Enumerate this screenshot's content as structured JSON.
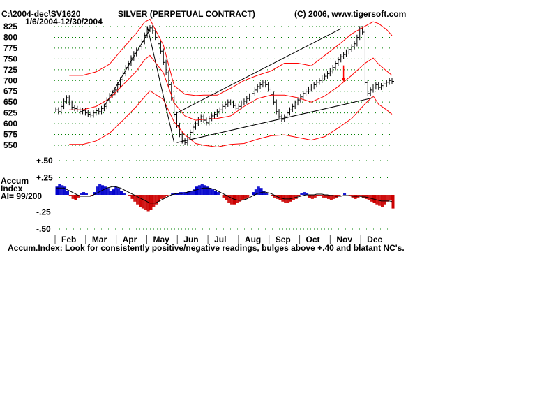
{
  "header": {
    "path": "C:\\2004-dec\\SV1620",
    "title": "SILVER (PERPETUAL CONTRACT)",
    "copyright": "(C) 2006, www.tigersoft.com",
    "date_range": "1/6/2004-12/30/2004"
  },
  "footer": {
    "note": "Accum.Index: Look for consistently positive/negative readings, bulges above +.40 and blatant NC's."
  },
  "colors": {
    "price_bars": "#000000",
    "bands": "#ff0000",
    "trendlines": "#000000",
    "accum_positive": "#0000cc",
    "accum_negative": "#cc0000",
    "accum_ma": "#000000",
    "grid": "#008000"
  },
  "chart_data": [
    {
      "type": "line",
      "name": "price",
      "ylim": [
        550,
        835
      ],
      "yticks": [
        550,
        575,
        600,
        625,
        650,
        675,
        700,
        725,
        750,
        775,
        800,
        825
      ],
      "ytick_labels": [
        "550",
        "575",
        "600",
        "625",
        "650",
        "675",
        "700",
        "725",
        "750",
        "775",
        "800",
        "825"
      ],
      "grid": true,
      "xlabels": [
        "Feb",
        "Mar",
        "Apr",
        "May",
        "Jun",
        "Jul",
        "Aug",
        "Sep",
        "Oct",
        "Nov",
        "Dec"
      ],
      "series": [
        {
          "name": "",
          "role": "close",
          "x": [
            0,
            2,
            4,
            6,
            8,
            10,
            12,
            14,
            16,
            18,
            20,
            22,
            24,
            26,
            28,
            30,
            32,
            34,
            36,
            38,
            40,
            42,
            44,
            46,
            48,
            50,
            52,
            54,
            56,
            58,
            60,
            62,
            64,
            66,
            68,
            70,
            72,
            74,
            76,
            78,
            80,
            82,
            84,
            86,
            88,
            90,
            92,
            94,
            96,
            98,
            100,
            102,
            104,
            106,
            108,
            110,
            112,
            114,
            116,
            118,
            120,
            122,
            124,
            126,
            128,
            130,
            132,
            134,
            136,
            138,
            140,
            142,
            144,
            146,
            148,
            150,
            152,
            154,
            156,
            158,
            160,
            162,
            164,
            166,
            168,
            170,
            172,
            174,
            176,
            178,
            180,
            182,
            184,
            186,
            188,
            190,
            192,
            194,
            196,
            198,
            200,
            202,
            204,
            206,
            208,
            210,
            212,
            214,
            216,
            218,
            220,
            222,
            224,
            226,
            228,
            230,
            232,
            234,
            236,
            238,
            240,
            242,
            244,
            246,
            248,
            250
          ],
          "values": [
            632,
            628,
            640,
            652,
            660,
            648,
            638,
            635,
            632,
            628,
            630,
            625,
            622,
            620,
            625,
            630,
            628,
            635,
            640,
            655,
            665,
            672,
            678,
            690,
            702,
            716,
            730,
            740,
            752,
            762,
            770,
            778,
            790,
            805,
            818,
            822,
            815,
            800,
            785,
            768,
            742,
            718,
            690,
            660,
            622,
            596,
            575,
            560,
            556,
            568,
            580,
            592,
            600,
            610,
            616,
            608,
            602,
            612,
            618,
            622,
            628,
            632,
            640,
            645,
            650,
            648,
            642,
            636,
            640,
            648,
            652,
            658,
            664,
            670,
            678,
            686,
            690,
            696,
            690,
            680,
            668,
            650,
            628,
            616,
            610,
            616,
            625,
            632,
            640,
            648,
            655,
            662,
            670,
            675,
            680,
            685,
            690,
            696,
            700,
            706,
            710,
            716,
            722,
            730,
            740,
            748,
            755,
            760,
            766,
            772,
            778,
            785,
            800,
            820,
            812,
            695,
            670,
            678,
            685,
            690,
            684,
            688,
            692,
            696,
            700,
            698
          ]
        },
        {
          "name": "",
          "role": "upper-band",
          "x": [
            10,
            20,
            30,
            40,
            50,
            60,
            66,
            70,
            80,
            88,
            96,
            104,
            110,
            120,
            130,
            140,
            150,
            160,
            170,
            180,
            190,
            200,
            210,
            220,
            230,
            236,
            240,
            246,
            250
          ],
          "values": [
            712,
            712,
            720,
            738,
            775,
            810,
            835,
            842,
            782,
            688,
            668,
            665,
            666,
            666,
            682,
            700,
            712,
            722,
            740,
            740,
            734,
            758,
            782,
            808,
            826,
            836,
            832,
            818,
            804
          ]
        },
        {
          "name": "",
          "role": "lower-band",
          "x": [
            10,
            20,
            30,
            40,
            50,
            60,
            66,
            70,
            80,
            88,
            96,
            104,
            110,
            120,
            130,
            140,
            150,
            160,
            170,
            180,
            190,
            200,
            210,
            220,
            230,
            236,
            240,
            246,
            250
          ],
          "values": [
            552,
            552,
            560,
            578,
            608,
            640,
            662,
            676,
            656,
            604,
            574,
            554,
            550,
            546,
            552,
            554,
            564,
            572,
            574,
            568,
            562,
            570,
            590,
            612,
            646,
            664,
            645,
            632,
            622
          ]
        },
        {
          "name": "",
          "role": "moving-average",
          "x": [
            10,
            20,
            30,
            40,
            50,
            60,
            66,
            70,
            80,
            88,
            96,
            104,
            110,
            120,
            130,
            140,
            150,
            160,
            170,
            180,
            190,
            200,
            210,
            220,
            230,
            236,
            240,
            246,
            250
          ],
          "values": [
            632,
            632,
            640,
            658,
            690,
            722,
            748,
            758,
            718,
            648,
            618,
            608,
            610,
            612,
            618,
            640,
            658,
            666,
            666,
            660,
            650,
            664,
            686,
            712,
            740,
            752,
            738,
            722,
            712
          ]
        },
        {
          "name": "",
          "role": "trendline",
          "x": [
            36,
            70
          ],
          "values": [
            640,
            818
          ]
        },
        {
          "name": "",
          "role": "trendline",
          "x": [
            68,
            88
          ],
          "values": [
            826,
            556
          ]
        },
        {
          "name": "",
          "role": "trendline",
          "x": [
            90,
            236
          ],
          "values": [
            556,
            660
          ]
        },
        {
          "name": "",
          "role": "trendline",
          "x": [
            90,
            212
          ],
          "values": [
            625,
            820
          ]
        }
      ],
      "annotations": [
        {
          "type": "arrow",
          "x": 214,
          "from": 735,
          "to": 698
        }
      ]
    },
    {
      "type": "bar",
      "name": "Accum Index",
      "title": "Accum\nIndex\nAI= 99/200",
      "ylim": [
        -0.5,
        0.5
      ],
      "yticks": [
        0.5,
        0.25,
        -0.25,
        -0.5
      ],
      "ytick_labels": [
        "+.50",
        "+.25",
        "-.25",
        "-.50"
      ],
      "grid": true,
      "x": [
        0,
        2,
        4,
        6,
        8,
        10,
        12,
        14,
        16,
        18,
        20,
        22,
        24,
        26,
        28,
        30,
        32,
        34,
        36,
        38,
        40,
        42,
        44,
        46,
        48,
        50,
        52,
        54,
        56,
        58,
        60,
        62,
        64,
        66,
        68,
        70,
        72,
        74,
        76,
        78,
        80,
        82,
        84,
        86,
        88,
        90,
        92,
        94,
        96,
        98,
        100,
        102,
        104,
        106,
        108,
        110,
        112,
        114,
        116,
        118,
        120,
        122,
        124,
        126,
        128,
        130,
        132,
        134,
        136,
        138,
        140,
        142,
        144,
        146,
        148,
        150,
        152,
        154,
        156,
        158,
        160,
        162,
        164,
        166,
        168,
        170,
        172,
        174,
        176,
        178,
        180,
        182,
        184,
        186,
        188,
        190,
        192,
        194,
        196,
        198,
        200,
        202,
        204,
        206,
        208,
        210,
        212,
        214,
        216,
        218,
        220,
        222,
        224,
        226,
        228,
        230,
        232,
        234,
        236,
        238,
        240,
        242,
        244,
        246,
        248,
        250
      ],
      "values": [
        0.12,
        0.16,
        0.14,
        0.12,
        0.06,
        -0.02,
        -0.06,
        -0.08,
        -0.04,
        0.02,
        0.04,
        0.02,
        0.0,
        -0.02,
        0.04,
        0.12,
        0.16,
        0.14,
        0.12,
        0.1,
        0.06,
        0.08,
        0.12,
        0.1,
        0.06,
        0.02,
        0.0,
        -0.02,
        -0.06,
        -0.1,
        -0.14,
        -0.18,
        -0.2,
        -0.22,
        -0.24,
        -0.22,
        -0.18,
        -0.14,
        -0.1,
        -0.06,
        -0.04,
        -0.02,
        0.0,
        0.02,
        0.03,
        0.03,
        0.04,
        0.04,
        0.04,
        0.05,
        0.06,
        0.08,
        0.12,
        0.14,
        0.16,
        0.14,
        0.12,
        0.1,
        0.08,
        0.06,
        0.04,
        0.0,
        -0.04,
        -0.08,
        -0.12,
        -0.14,
        -0.14,
        -0.12,
        -0.1,
        -0.08,
        -0.06,
        -0.04,
        0.0,
        0.04,
        0.08,
        0.12,
        0.1,
        0.06,
        0.02,
        0.0,
        -0.02,
        -0.04,
        -0.06,
        -0.08,
        -0.1,
        -0.12,
        -0.12,
        -0.1,
        -0.08,
        -0.06,
        -0.02,
        0.02,
        0.04,
        0.02,
        -0.04,
        -0.06,
        -0.04,
        -0.02,
        -0.02,
        -0.04,
        -0.04,
        -0.06,
        -0.08,
        -0.06,
        -0.04,
        -0.02,
        0.0,
        0.02,
        0.0,
        -0.02,
        -0.04,
        -0.06,
        -0.04,
        -0.02,
        -0.04,
        -0.06,
        -0.08,
        -0.1,
        -0.12,
        -0.14,
        -0.16,
        -0.18,
        -0.14,
        -0.1,
        -0.08,
        -0.2
      ],
      "ma": [
        0.1,
        0.1,
        0.1,
        0.1,
        0.08,
        0.06,
        0.04,
        0.02,
        0.0,
        -0.02,
        -0.02,
        -0.02,
        -0.02,
        -0.02,
        0.0,
        0.02,
        0.04,
        0.06,
        0.08,
        0.1,
        0.11,
        0.12,
        0.12,
        0.11,
        0.1,
        0.08,
        0.06,
        0.04,
        0.02,
        0.0,
        -0.02,
        -0.04,
        -0.06,
        -0.08,
        -0.1,
        -0.12,
        -0.12,
        -0.12,
        -0.1,
        -0.08,
        -0.06,
        -0.04,
        -0.02,
        0.0,
        0.01,
        0.02,
        0.02,
        0.02,
        0.03,
        0.04,
        0.05,
        0.06,
        0.07,
        0.08,
        0.09,
        0.1,
        0.1,
        0.1,
        0.09,
        0.08,
        0.06,
        0.04,
        0.02,
        0.0,
        -0.02,
        -0.04,
        -0.06,
        -0.07,
        -0.08,
        -0.08,
        -0.07,
        -0.06,
        -0.04,
        -0.02,
        0.0,
        0.02,
        0.03,
        0.04,
        0.04,
        0.03,
        0.02,
        0.0,
        -0.02,
        -0.04,
        -0.05,
        -0.06,
        -0.06,
        -0.06,
        -0.05,
        -0.04,
        -0.03,
        -0.02,
        -0.01,
        0.0,
        0.0,
        0.0,
        0.0,
        0.01,
        0.01,
        0.01,
        0.0,
        0.0,
        -0.01,
        -0.01,
        -0.02,
        -0.02,
        -0.02,
        -0.01,
        -0.01,
        -0.01,
        -0.02,
        -0.02,
        -0.02,
        -0.02,
        -0.03,
        -0.03,
        -0.04,
        -0.05,
        -0.06,
        -0.07,
        -0.08,
        -0.09,
        -0.09,
        -0.09,
        -0.09,
        -0.1
      ]
    }
  ]
}
